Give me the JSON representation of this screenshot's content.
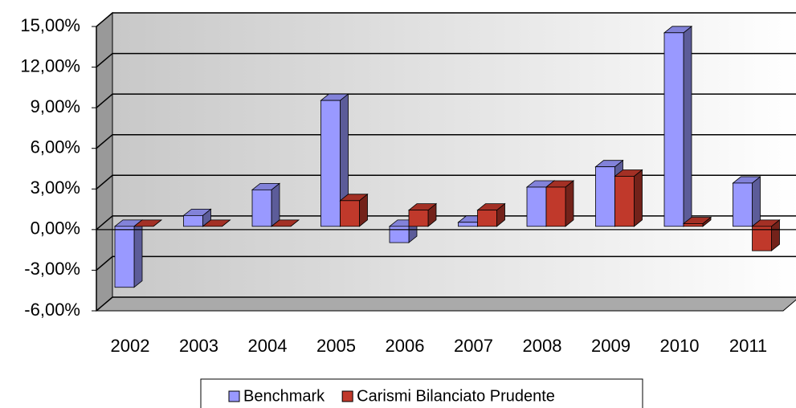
{
  "chart_data": {
    "type": "bar3d",
    "categories": [
      "2002",
      "2003",
      "2004",
      "2005",
      "2006",
      "2007",
      "2008",
      "2009",
      "2010",
      "2011"
    ],
    "series": [
      {
        "name": "Benchmark",
        "color": "#9999ff",
        "values": [
          -4.5,
          0.8,
          2.7,
          9.3,
          -1.2,
          0.3,
          2.9,
          4.4,
          14.3,
          3.2
        ]
      },
      {
        "name": "Carismi Bilanciato Prudente",
        "color": "#c0392b",
        "values": [
          0.0,
          0.0,
          0.0,
          1.9,
          1.2,
          1.2,
          2.9,
          3.7,
          0.2,
          -1.8
        ]
      }
    ],
    "ylim": [
      -6,
      15
    ],
    "yticks": [
      {
        "value": -6,
        "label": "-6,00%"
      },
      {
        "value": -3,
        "label": "-3,00%"
      },
      {
        "value": 0,
        "label": "0,00%"
      },
      {
        "value": 3,
        "label": "3,00%"
      },
      {
        "value": 6,
        "label": "6,00%"
      },
      {
        "value": 9,
        "label": "9,00%"
      },
      {
        "value": 12,
        "label": "12,00%"
      },
      {
        "value": 15,
        "label": "15,00%"
      }
    ],
    "grid": true,
    "legend": "bottom"
  }
}
